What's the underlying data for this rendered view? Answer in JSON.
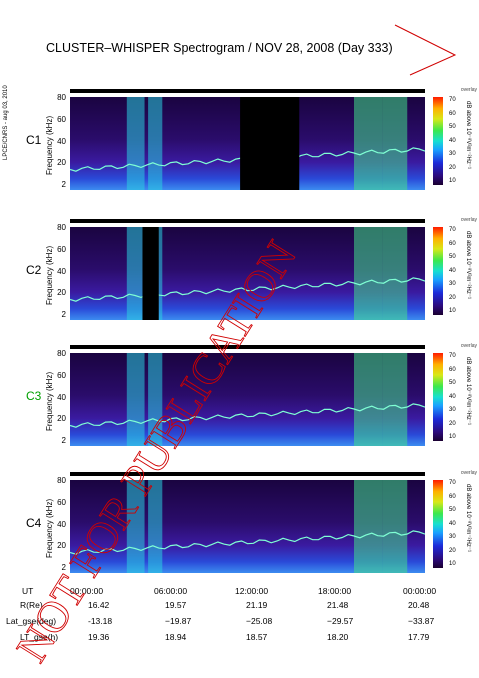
{
  "title": "CLUSTER–WHISPER Spectrogram / NOV 28, 2008 (Day 333)",
  "side_stamp": "LPCE/CNRS - aug 03, 2010",
  "watermark": "NOT FOR PUBLICATION",
  "colorbar": {
    "label": "dB above 10⁻⁸V²m⁻²Hz⁻¹",
    "overlay_label": "overlay",
    "ticks": [
      "70",
      "60",
      "50",
      "40",
      "30",
      "20",
      "10"
    ],
    "range": [
      10,
      70
    ],
    "colors": [
      "#1a0030",
      "#2c0a7a",
      "#1c2ad8",
      "#1aa0ff",
      "#18e0d0",
      "#3ce84c",
      "#d8e818",
      "#ffb000",
      "#ff1a00"
    ]
  },
  "chart_data": {
    "type": "heatmap",
    "title": "CLUSTER–WHISPER Spectrogram / NOV 28, 2008 (Day 333)",
    "ylabel": "Frequency (kHz)",
    "ylim": [
      2,
      80
    ],
    "yticks": [
      "80",
      "60",
      "40",
      "20",
      "2"
    ],
    "xlabel": "UT",
    "xticks": [
      "00:00:00",
      "06:00:00",
      "12:00:00",
      "18:00:00",
      "00:00:00"
    ],
    "panels": [
      {
        "name": "C1",
        "gaps_hours": [
          [
            11.5,
            15.5
          ]
        ]
      },
      {
        "name": "C2",
        "gaps_hours": [
          [
            4.9,
            6.0
          ]
        ]
      },
      {
        "name": "C3",
        "gaps_hours": []
      },
      {
        "name": "C4",
        "gaps_hours": []
      }
    ],
    "ephemeris": [
      {
        "label": "R(Re)",
        "values": [
          "16.42",
          "19.57",
          "21.19",
          "21.48",
          "20.48"
        ]
      },
      {
        "label": "Lat_gse(deg)",
        "values": [
          "-13.18",
          "−19.87",
          "−25.08",
          "−29.57",
          "−33.87"
        ]
      },
      {
        "label": "LT_gse(h)",
        "values": [
          "19.36",
          "18.94",
          "18.57",
          "18.20",
          "17.79"
        ]
      }
    ]
  }
}
